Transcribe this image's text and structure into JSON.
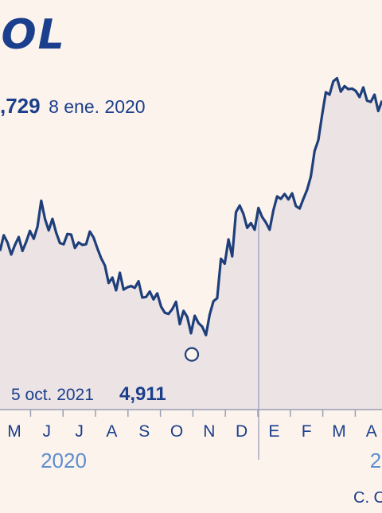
{
  "header": {
    "brand": "SOL"
  },
  "max_annotation": {
    "value": ",729",
    "date": "8 ene. 2020"
  },
  "min_annotation": {
    "date": "5 oct. 2021",
    "value": "4,911"
  },
  "source_text": "C. C",
  "colors": {
    "line": "#1e3f7a",
    "area": "#ebe3e4",
    "axis": "#9a9fb6",
    "year_label": "#5d8ed0",
    "background": "#fcf3ec"
  },
  "chart_data": {
    "type": "line",
    "title": "",
    "x_start_label": "M",
    "month_labels": [
      "M",
      "J",
      "J",
      "A",
      "S",
      "O",
      "N",
      "D",
      "E",
      "F",
      "M",
      "A"
    ],
    "year_labels": [
      "2020",
      "2"
    ],
    "ylim": [
      4.0,
      10.5
    ],
    "series": [
      {
        "values": [
          6.62,
          6.88,
          6.76,
          6.56,
          6.72,
          6.85,
          6.62,
          6.77,
          6.95,
          6.82,
          7.02,
          7.45,
          7.15,
          6.96,
          7.15,
          6.92,
          6.75,
          6.73,
          6.9,
          6.89,
          6.67,
          6.76,
          6.72,
          6.73,
          6.94,
          6.84,
          6.66,
          6.5,
          6.38,
          6.09,
          6.18,
          5.97,
          6.26,
          5.98,
          6.02,
          6.04,
          6.01,
          6.12,
          5.85,
          5.86,
          5.95,
          5.82,
          5.92,
          5.7,
          5.6,
          5.58,
          5.66,
          5.78,
          5.41,
          5.63,
          5.53,
          5.26,
          5.55,
          5.43,
          5.37,
          5.23,
          5.57,
          5.79,
          5.84,
          6.49,
          6.41,
          6.81,
          6.53,
          7.26,
          7.37,
          7.23,
          7.0,
          7.08,
          6.97,
          7.33,
          7.18,
          7.09,
          6.97,
          7.29,
          7.52,
          7.48,
          7.56,
          7.47,
          7.57,
          7.36,
          7.32,
          7.48,
          7.63,
          7.85,
          8.27,
          8.45,
          8.86,
          9.24,
          9.2,
          9.42,
          9.47,
          9.25,
          9.34,
          9.29,
          9.3,
          9.26,
          9.16,
          9.32,
          9.1,
          9.08,
          9.2,
          8.93,
          9.1
        ]
      }
    ],
    "min_point": {
      "date": "5 oct. 2021",
      "value": 4.911
    },
    "grid": false
  }
}
